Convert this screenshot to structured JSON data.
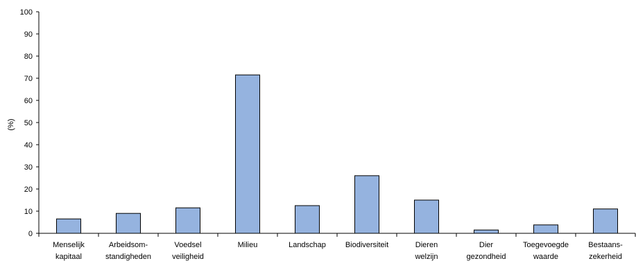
{
  "chart_data": {
    "type": "bar",
    "title": "",
    "xlabel": "",
    "ylabel": "(%)",
    "ylim": [
      0,
      100
    ],
    "yticks": [
      "0",
      "10",
      "20",
      "30",
      "40",
      "50",
      "60",
      "70",
      "80",
      "90",
      "100"
    ],
    "categories": [
      [
        "Menselijk",
        "kapitaal"
      ],
      [
        "Arbeidsom-",
        "standigheden"
      ],
      [
        "Voedsel",
        "veiligheid"
      ],
      [
        "Milieu"
      ],
      [
        "Landschap"
      ],
      [
        "Biodiversiteit"
      ],
      [
        "Dieren",
        "welzijn"
      ],
      [
        "Dier",
        "gezondheid"
      ],
      [
        "Toegevoegde",
        "waarde"
      ],
      [
        "Bestaans-",
        "zekerheid"
      ]
    ],
    "values": [
      6.5,
      9,
      11.5,
      71.5,
      12.5,
      26,
      15,
      1.5,
      3.8,
      11
    ],
    "bar_color": "#95b3df",
    "bar_stroke": "#000000",
    "grid": false,
    "legend": "none"
  }
}
